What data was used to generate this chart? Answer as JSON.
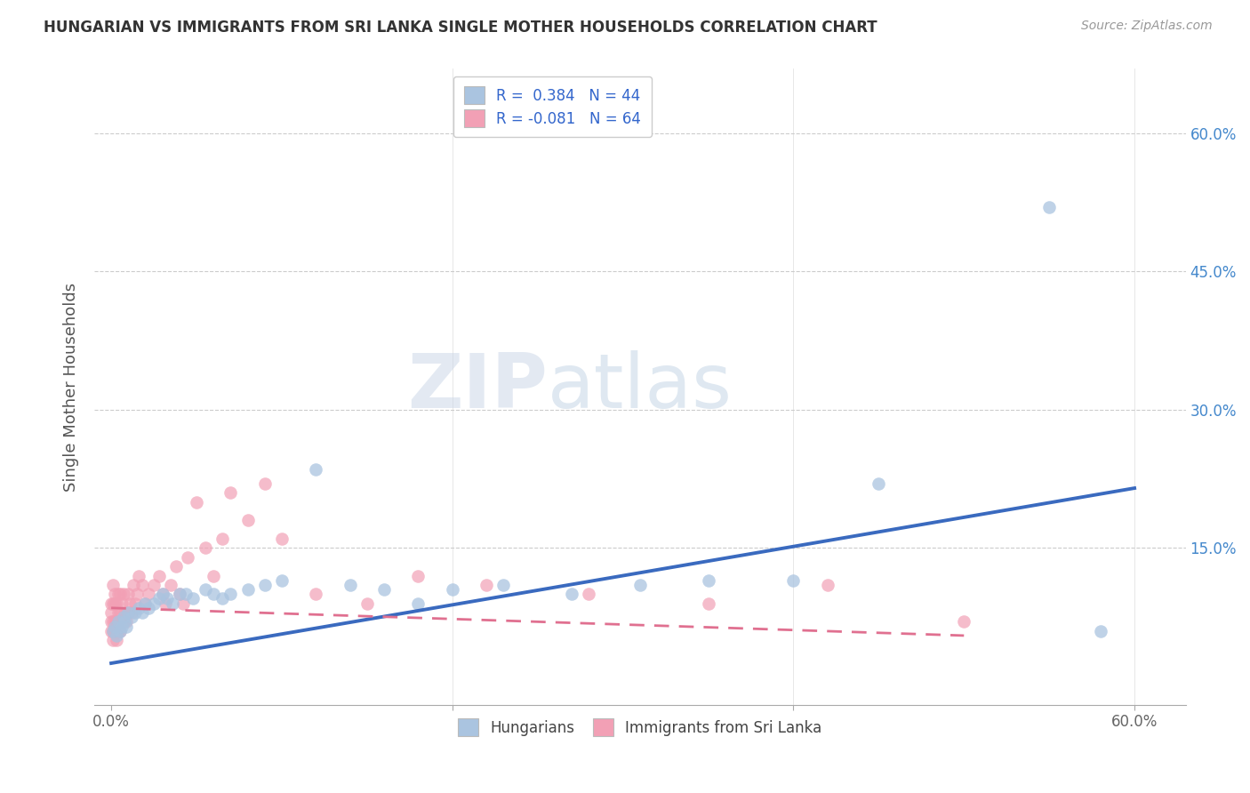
{
  "title": "HUNGARIAN VS IMMIGRANTS FROM SRI LANKA SINGLE MOTHER HOUSEHOLDS CORRELATION CHART",
  "source": "Source: ZipAtlas.com",
  "ylabel": "Single Mother Households",
  "yticks": [
    "15.0%",
    "30.0%",
    "45.0%",
    "60.0%"
  ],
  "ytick_vals": [
    0.15,
    0.3,
    0.45,
    0.6
  ],
  "xlim": [
    -0.01,
    0.63
  ],
  "ylim": [
    -0.02,
    0.67
  ],
  "watermark_zip": "ZIP",
  "watermark_atlas": "atlas",
  "blue_color": "#aac4e0",
  "pink_color": "#f2a0b5",
  "line_blue": "#3a6abf",
  "line_pink": "#e07090",
  "hungarian_scatter_x": [
    0.001,
    0.002,
    0.003,
    0.004,
    0.005,
    0.006,
    0.007,
    0.008,
    0.009,
    0.01,
    0.012,
    0.014,
    0.016,
    0.018,
    0.02,
    0.022,
    0.025,
    0.028,
    0.03,
    0.033,
    0.036,
    0.04,
    0.044,
    0.048,
    0.055,
    0.06,
    0.065,
    0.07,
    0.08,
    0.09,
    0.1,
    0.12,
    0.14,
    0.16,
    0.18,
    0.2,
    0.23,
    0.27,
    0.31,
    0.35,
    0.4,
    0.45,
    0.55,
    0.58
  ],
  "hungarian_scatter_y": [
    0.06,
    0.065,
    0.055,
    0.07,
    0.06,
    0.065,
    0.075,
    0.07,
    0.065,
    0.08,
    0.075,
    0.08,
    0.085,
    0.08,
    0.09,
    0.085,
    0.09,
    0.095,
    0.1,
    0.095,
    0.09,
    0.1,
    0.1,
    0.095,
    0.105,
    0.1,
    0.095,
    0.1,
    0.105,
    0.11,
    0.115,
    0.235,
    0.11,
    0.105,
    0.09,
    0.105,
    0.11,
    0.1,
    0.11,
    0.115,
    0.115,
    0.22,
    0.52,
    0.06
  ],
  "srilanka_scatter_x": [
    0.0,
    0.0,
    0.0,
    0.0,
    0.001,
    0.001,
    0.001,
    0.001,
    0.001,
    0.002,
    0.002,
    0.002,
    0.002,
    0.003,
    0.003,
    0.003,
    0.004,
    0.004,
    0.004,
    0.005,
    0.005,
    0.005,
    0.006,
    0.006,
    0.007,
    0.007,
    0.008,
    0.009,
    0.01,
    0.01,
    0.011,
    0.012,
    0.013,
    0.014,
    0.015,
    0.016,
    0.018,
    0.02,
    0.022,
    0.025,
    0.028,
    0.03,
    0.032,
    0.035,
    0.038,
    0.04,
    0.042,
    0.045,
    0.05,
    0.055,
    0.06,
    0.065,
    0.07,
    0.08,
    0.09,
    0.1,
    0.12,
    0.15,
    0.18,
    0.22,
    0.28,
    0.35,
    0.42,
    0.5
  ],
  "srilanka_scatter_y": [
    0.06,
    0.07,
    0.08,
    0.09,
    0.05,
    0.06,
    0.07,
    0.09,
    0.11,
    0.06,
    0.07,
    0.09,
    0.1,
    0.05,
    0.07,
    0.09,
    0.06,
    0.08,
    0.1,
    0.06,
    0.08,
    0.1,
    0.07,
    0.09,
    0.07,
    0.1,
    0.08,
    0.07,
    0.08,
    0.1,
    0.09,
    0.08,
    0.11,
    0.09,
    0.1,
    0.12,
    0.11,
    0.09,
    0.1,
    0.11,
    0.12,
    0.1,
    0.09,
    0.11,
    0.13,
    0.1,
    0.09,
    0.14,
    0.2,
    0.15,
    0.12,
    0.16,
    0.21,
    0.18,
    0.22,
    0.16,
    0.1,
    0.09,
    0.12,
    0.11,
    0.1,
    0.09,
    0.11,
    0.07
  ],
  "blue_line_x": [
    0.0,
    0.6
  ],
  "blue_line_y": [
    0.025,
    0.215
  ],
  "pink_line_x": [
    0.0,
    0.5
  ],
  "pink_line_y": [
    0.085,
    0.055
  ]
}
